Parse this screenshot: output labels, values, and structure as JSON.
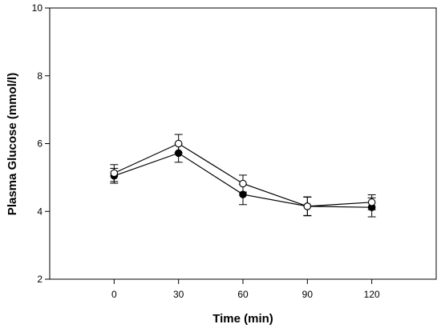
{
  "chart_data": {
    "type": "line",
    "title": "",
    "xlabel": "Time (min)",
    "ylabel": "Plasma Glucose (mmol/l)",
    "x": [
      0,
      30,
      60,
      90,
      120
    ],
    "x_tick_labels": [
      "0",
      "30",
      "60",
      "90",
      "120"
    ],
    "xlim": [
      -30,
      150
    ],
    "ylim": [
      2,
      10
    ],
    "y_ticks": [
      2,
      4,
      6,
      8,
      10
    ],
    "y_tick_labels": [
      "2",
      "4",
      "6",
      "8",
      "10"
    ],
    "grid": false,
    "legend": false,
    "series": [
      {
        "marker": "filled-circle",
        "color": "#000000",
        "values": [
          5.05,
          5.72,
          4.5,
          4.15,
          4.12
        ],
        "errors": [
          0.22,
          0.27,
          0.3,
          0.28,
          0.28
        ]
      },
      {
        "marker": "open-circle",
        "color": "#000000",
        "values": [
          5.13,
          6.0,
          4.82,
          4.15,
          4.27
        ],
        "errors": [
          0.25,
          0.27,
          0.25,
          0.27,
          0.22
        ]
      }
    ]
  }
}
